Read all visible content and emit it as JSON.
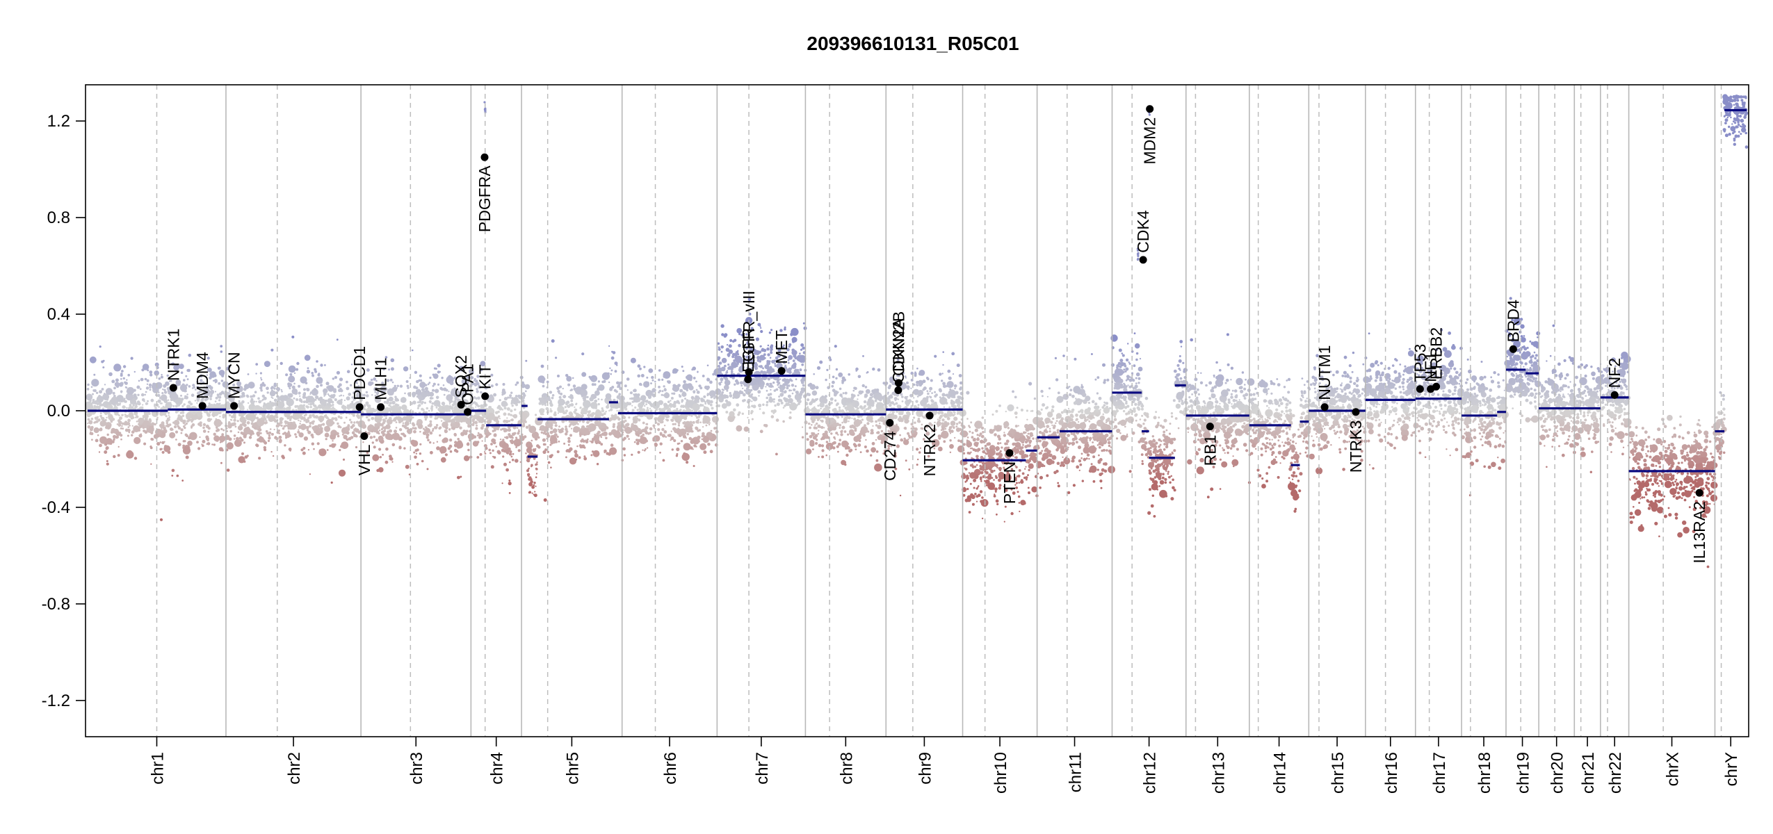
{
  "chart_data": {
    "type": "scatter",
    "title": "209396610131_R05C01",
    "xlabel": "",
    "ylabel": "",
    "ylim": [
      -1.35,
      1.35
    ],
    "y_ticks": [
      -1.2,
      -0.8,
      -0.4,
      0.0,
      0.4,
      0.8,
      1.2
    ],
    "y_tick_labels": [
      "-1.2",
      "-0.8",
      "-0.4",
      "0.0",
      "0.4",
      "0.8",
      "1.2"
    ],
    "grid": false,
    "colors": {
      "gain": "#8a8ec8",
      "neutral": "#d4d4d4",
      "loss": "#b46a6a",
      "segment": "#0a0a80",
      "gene_point": "#000000",
      "chrom_border": "#b8b8b8",
      "centromere": "#bdbdbd"
    },
    "chromosomes": [
      {
        "label": "chr1",
        "size": 249,
        "cen": 0.5,
        "noise": 0.085,
        "segments": [
          [
            0,
            0.58,
            0.0
          ],
          [
            0.58,
            1,
            0.005
          ]
        ]
      },
      {
        "label": "chr2",
        "size": 243,
        "cen": 0.38,
        "noise": 0.08,
        "segments": [
          [
            0,
            1,
            -0.005
          ]
        ]
      },
      {
        "label": "chr3",
        "size": 198,
        "cen": 0.45,
        "noise": 0.085,
        "segments": [
          [
            0,
            1,
            -0.015
          ]
        ]
      },
      {
        "label": "chr4",
        "size": 91,
        "cen": 0.28,
        "noise": 0.085,
        "segments": [
          [
            0,
            0.3,
            0.0
          ],
          [
            0.3,
            1,
            -0.06
          ]
        ],
        "hotspots": [
          [
            0.28,
            1.25
          ]
        ]
      },
      {
        "label": "chr5",
        "size": 181,
        "cen": 0.26,
        "noise": 0.085,
        "segments": [
          [
            0,
            0.06,
            0.02
          ],
          [
            0.06,
            0.16,
            -0.19
          ],
          [
            0.16,
            0.87,
            -0.035
          ],
          [
            0.87,
            0.96,
            0.035
          ],
          [
            0.96,
            1,
            -0.01
          ]
        ]
      },
      {
        "label": "chr6",
        "size": 171,
        "cen": 0.35,
        "noise": 0.085,
        "segments": [
          [
            0,
            1,
            -0.01
          ]
        ]
      },
      {
        "label": "chr7",
        "size": 159,
        "cen": 0.36,
        "noise": 0.09,
        "segments": [
          [
            0,
            1,
            0.145
          ]
        ]
      },
      {
        "label": "chr8",
        "size": 145,
        "cen": 0.3,
        "noise": 0.085,
        "segments": [
          [
            0,
            1,
            -0.015
          ]
        ]
      },
      {
        "label": "chr9",
        "size": 138,
        "cen": 0.35,
        "noise": 0.085,
        "segments": [
          [
            0,
            1,
            0.005
          ]
        ]
      },
      {
        "label": "chr10",
        "size": 134,
        "cen": 0.3,
        "noise": 0.09,
        "segments": [
          [
            0,
            0.85,
            -0.205
          ],
          [
            0.85,
            1,
            -0.165
          ]
        ]
      },
      {
        "label": "chr11",
        "size": 135,
        "cen": 0.4,
        "noise": 0.09,
        "segments": [
          [
            0,
            0.3,
            -0.11
          ],
          [
            0.3,
            1,
            -0.085
          ]
        ]
      },
      {
        "label": "chr12",
        "size": 133,
        "cen": 0.27,
        "noise": 0.09,
        "segments": [
          [
            0,
            0.4,
            0.075
          ],
          [
            0.4,
            0.5,
            -0.085
          ],
          [
            0.5,
            0.85,
            -0.195
          ],
          [
            0.85,
            1,
            0.105
          ]
        ],
        "hotspots": [
          [
            0.5,
            1.25
          ],
          [
            0.35,
            0.65
          ]
        ]
      },
      {
        "label": "chr13",
        "size": 114,
        "cen": 0.15,
        "noise": 0.085,
        "segments": [
          [
            0,
            1,
            -0.02
          ]
        ]
      },
      {
        "label": "chr14",
        "size": 107,
        "cen": 0.15,
        "noise": 0.09,
        "segments": [
          [
            0,
            0.7,
            -0.06
          ],
          [
            0.7,
            0.85,
            -0.225
          ],
          [
            0.85,
            1,
            -0.045
          ]
        ]
      },
      {
        "label": "chr15",
        "size": 102,
        "cen": 0.18,
        "noise": 0.085,
        "segments": [
          [
            0,
            1,
            0.0
          ]
        ]
      },
      {
        "label": "chr16",
        "size": 90,
        "cen": 0.4,
        "noise": 0.085,
        "segments": [
          [
            0,
            1,
            0.045
          ]
        ]
      },
      {
        "label": "chr17",
        "size": 83,
        "cen": 0.3,
        "noise": 0.09,
        "segments": [
          [
            0,
            1,
            0.05
          ]
        ]
      },
      {
        "label": "chr18",
        "size": 80,
        "cen": 0.2,
        "noise": 0.085,
        "segments": [
          [
            0,
            0.8,
            -0.02
          ],
          [
            0.8,
            1,
            -0.005
          ]
        ]
      },
      {
        "label": "chr19",
        "size": 59,
        "cen": 0.45,
        "noise": 0.1,
        "segments": [
          [
            0,
            0.6,
            0.17
          ],
          [
            0.6,
            1,
            0.155
          ]
        ]
      },
      {
        "label": "chr20",
        "size": 64,
        "cen": 0.45,
        "noise": 0.085,
        "segments": [
          [
            0,
            1,
            0.01
          ]
        ]
      },
      {
        "label": "chr21",
        "size": 47,
        "cen": 0.25,
        "noise": 0.085,
        "segments": [
          [
            0,
            1,
            0.01
          ]
        ]
      },
      {
        "label": "chr22",
        "size": 51,
        "cen": 0.25,
        "noise": 0.085,
        "segments": [
          [
            0,
            1,
            0.055
          ]
        ]
      },
      {
        "label": "chrX",
        "size": 155,
        "cen": 0.4,
        "noise": 0.09,
        "segments": [
          [
            0,
            1,
            -0.25
          ]
        ]
      },
      {
        "label": "chrY",
        "size": 57,
        "cen": 0.2,
        "noise": 0.06,
        "segments": [
          [
            0,
            0.3,
            -0.085
          ],
          [
            0.3,
            1,
            1.245
          ]
        ]
      }
    ],
    "genes": [
      {
        "name": "NTRK1",
        "chr": 0,
        "pos": 0.62,
        "y": 0.095,
        "label_side": "up"
      },
      {
        "name": "MDM4",
        "chr": 0,
        "pos": 0.83,
        "y": 0.02,
        "label_side": "up"
      },
      {
        "name": "MYCN",
        "chr": 1,
        "pos": 0.06,
        "y": 0.02,
        "label_side": "up"
      },
      {
        "name": "PDCD1",
        "chr": 1,
        "pos": 0.99,
        "y": 0.015,
        "label_side": "up"
      },
      {
        "name": "VHL",
        "chr": 2,
        "pos": 0.03,
        "y": -0.105,
        "label_side": "down"
      },
      {
        "name": "MLH1",
        "chr": 2,
        "pos": 0.18,
        "y": 0.015,
        "label_side": "up"
      },
      {
        "name": "SOX2",
        "chr": 2,
        "pos": 0.91,
        "y": 0.025,
        "label_side": "up"
      },
      {
        "name": "OPA1",
        "chr": 2,
        "pos": 0.97,
        "y": -0.005,
        "label_side": "up"
      },
      {
        "name": "KIT",
        "chr": 3,
        "pos": 0.28,
        "y": 0.06,
        "label_side": "up"
      },
      {
        "name": "PDGFRA",
        "chr": 3,
        "pos": 0.27,
        "y": 1.05,
        "label_side": "down"
      },
      {
        "name": "EGFR",
        "chr": 6,
        "pos": 0.35,
        "y": 0.13,
        "label_side": "up"
      },
      {
        "name": "EGFR_vIII",
        "chr": 6,
        "pos": 0.36,
        "y": 0.16,
        "label_side": "up"
      },
      {
        "name": "MET",
        "chr": 6,
        "pos": 0.73,
        "y": 0.165,
        "label_side": "up"
      },
      {
        "name": "CD274",
        "chr": 8,
        "pos": 0.05,
        "y": -0.05,
        "label_side": "down"
      },
      {
        "name": "CDKN2A",
        "chr": 8,
        "pos": 0.16,
        "y": 0.085,
        "label_side": "up"
      },
      {
        "name": "CDKN2B",
        "chr": 8,
        "pos": 0.165,
        "y": 0.115,
        "label_side": "up"
      },
      {
        "name": "NTRK2",
        "chr": 8,
        "pos": 0.57,
        "y": -0.02,
        "label_side": "down"
      },
      {
        "name": "PTEN",
        "chr": 9,
        "pos": 0.63,
        "y": -0.175,
        "label_side": "down"
      },
      {
        "name": "CDK4",
        "chr": 11,
        "pos": 0.42,
        "y": 0.625,
        "label_side": "up"
      },
      {
        "name": "MDM2",
        "chr": 11,
        "pos": 0.51,
        "y": 1.25,
        "label_side": "down"
      },
      {
        "name": "RB1",
        "chr": 12,
        "pos": 0.38,
        "y": -0.065,
        "label_side": "down"
      },
      {
        "name": "NUTM1",
        "chr": 14,
        "pos": 0.28,
        "y": 0.015,
        "label_side": "up"
      },
      {
        "name": "NTRK3",
        "chr": 14,
        "pos": 0.83,
        "y": -0.005,
        "label_side": "down"
      },
      {
        "name": "TP53",
        "chr": 16,
        "pos": 0.1,
        "y": 0.09,
        "label_side": "up"
      },
      {
        "name": "NF1",
        "chr": 16,
        "pos": 0.33,
        "y": 0.09,
        "label_side": "up"
      },
      {
        "name": "ERBB2",
        "chr": 16,
        "pos": 0.45,
        "y": 0.1,
        "label_side": "up"
      },
      {
        "name": "BRD4",
        "chr": 18,
        "pos": 0.22,
        "y": 0.255,
        "label_side": "up"
      },
      {
        "name": "NF2",
        "chr": 21,
        "pos": 0.5,
        "y": 0.065,
        "label_side": "up"
      },
      {
        "name": "IL13RA2",
        "chr": 22,
        "pos": 0.82,
        "y": -0.34,
        "label_side": "down"
      }
    ]
  }
}
